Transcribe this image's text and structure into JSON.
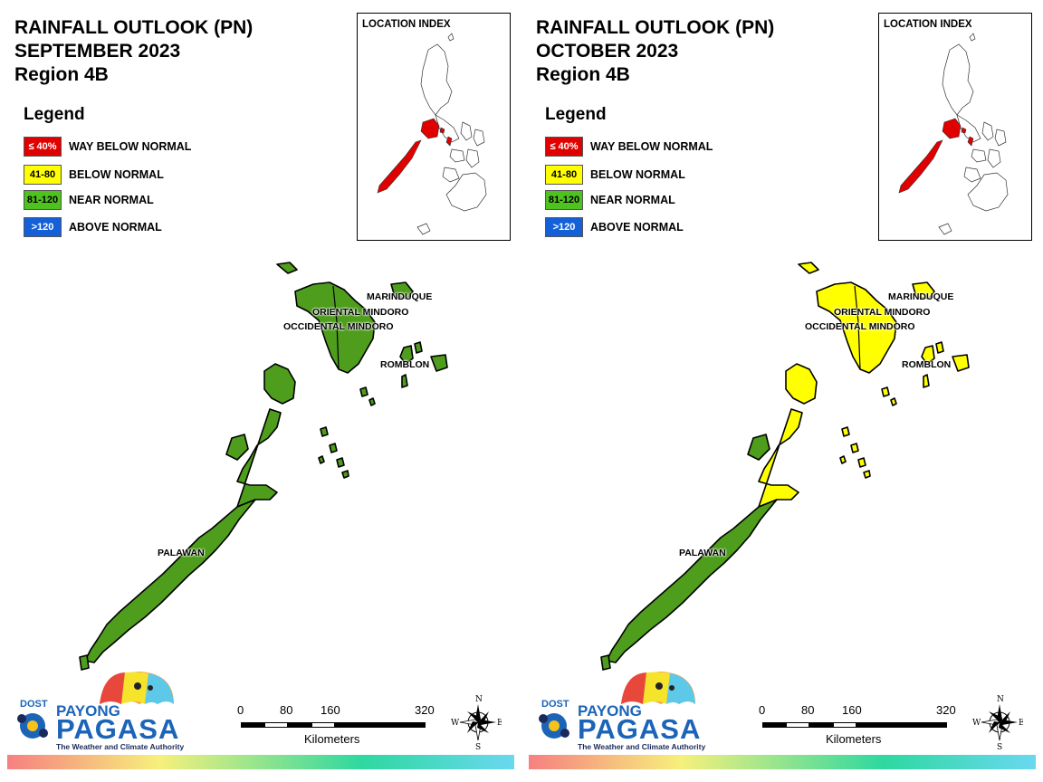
{
  "panels": [
    {
      "id": "september",
      "title_line1": "RAINFALL OUTLOOK (PN)",
      "title_line2": "SEPTEMBER 2023",
      "title_line3": "Region 4B",
      "fills": {
        "palawan_north": "#4e9d1c",
        "palawan_south": "#4e9d1c",
        "mindoro": "#4e9d1c",
        "islands": "#4e9d1c"
      }
    },
    {
      "id": "october",
      "title_line1": "RAINFALL OUTLOOK (PN)",
      "title_line2": "OCTOBER 2023",
      "title_line3": "Region 4B",
      "fills": {
        "palawan_north": "#ffff00",
        "palawan_south": "#4e9d1c",
        "mindoro": "#ffff00",
        "islands": "#ffff00"
      }
    }
  ],
  "legend": {
    "title": "Legend",
    "items": [
      {
        "range": "≤ 40%",
        "label": "WAY BELOW NORMAL",
        "color": "#e00000",
        "text_color": "#ffffff"
      },
      {
        "range": "41-80",
        "label": "BELOW NORMAL",
        "color": "#ffff00",
        "text_color": "#000000"
      },
      {
        "range": "81-120",
        "label": "NEAR NORMAL",
        "color": "#4ec21e",
        "text_color": "#000000"
      },
      {
        "range": ">120",
        "label": "ABOVE NORMAL",
        "color": "#1460d8",
        "text_color": "#ffffff"
      }
    ]
  },
  "location_index": {
    "title": "LOCATION INDEX",
    "highlight_color": "#e00000"
  },
  "labels": {
    "marinduque": "MARINDUQUE",
    "oriental_mindoro": "ORIENTAL MINDORO",
    "occidental_mindoro": "OCCIDENTAL MINDORO",
    "romblon": "ROMBLON",
    "palawan": "PALAWAN"
  },
  "logo": {
    "dost": "DOST",
    "payong": "PAYONG",
    "pagasa": "PAGASA",
    "tagline": "The Weather and Climate Authority"
  },
  "scale": {
    "ticks": [
      "0",
      "80",
      "160",
      "320"
    ],
    "units": "Kilometers"
  },
  "compass": {
    "n": "N",
    "s": "S",
    "e": "E",
    "w": "W"
  }
}
